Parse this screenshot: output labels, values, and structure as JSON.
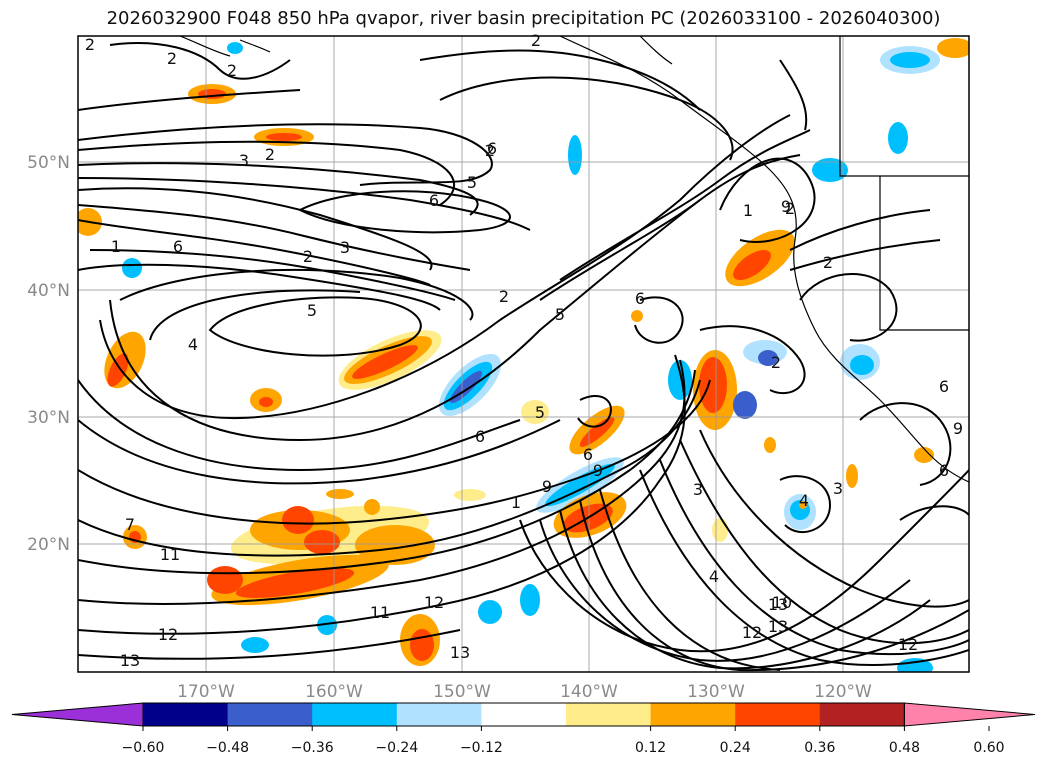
{
  "title": "2026032900 F048 850 hPa qvapor, river basin precipitation PC (2026033100 - 2026040300)",
  "map": {
    "type": "contour-fill map",
    "longitude_ticks": [
      "170°W",
      "160°W",
      "150°W",
      "140°W",
      "130°W",
      "120°W"
    ],
    "latitude_ticks": [
      "50°N",
      "40°N",
      "30°N",
      "20°N"
    ],
    "grid": true,
    "contour_labels": [
      "2",
      "2",
      "2",
      "2",
      "3",
      "2",
      "5",
      "6",
      "6",
      "2",
      "3",
      "1",
      "5",
      "4",
      "2",
      "5",
      "6",
      "1",
      "2",
      "2",
      "5",
      "6",
      "9",
      "6",
      "6",
      "1",
      "3",
      "2",
      "4",
      "3",
      "9",
      "9",
      "2",
      "4",
      "11",
      "11",
      "12",
      "12",
      "13",
      "13",
      "13",
      "10",
      "12",
      "13",
      "12",
      "6",
      "9",
      "6",
      "7"
    ]
  },
  "colorbar": {
    "ticks": [
      "−0.60",
      "−0.48",
      "−0.36",
      "−0.24",
      "−0.12",
      "0.12",
      "0.24",
      "0.36",
      "0.48",
      "0.60"
    ],
    "colors": [
      "#9b30d8",
      "#00008b",
      "#3a5fcd",
      "#00bfff",
      "#b0e2ff",
      "#ffffff",
      "#ffec8b",
      "#ffa500",
      "#ff4500",
      "#b22222",
      "#ff82ab"
    ],
    "extend": "both"
  }
}
